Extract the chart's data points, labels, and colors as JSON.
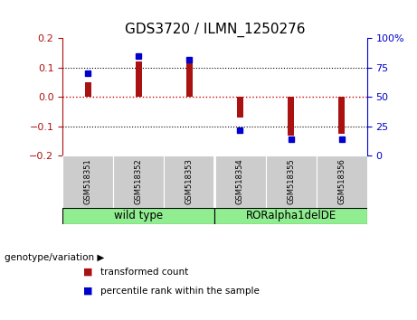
{
  "title": "GDS3720 / ILMN_1250276",
  "samples": [
    "GSM518351",
    "GSM518352",
    "GSM518353",
    "GSM518354",
    "GSM518355",
    "GSM518356"
  ],
  "bar_values": [
    0.05,
    0.12,
    0.12,
    -0.07,
    -0.13,
    -0.125
  ],
  "percentile_values": [
    70,
    85,
    82,
    22,
    14,
    14
  ],
  "ylim_left": [
    -0.2,
    0.2
  ],
  "ylim_right": [
    0,
    100
  ],
  "yticks_left": [
    -0.2,
    -0.1,
    0,
    0.1,
    0.2
  ],
  "yticks_right": [
    0,
    25,
    50,
    75,
    100
  ],
  "bar_color": "#aa1111",
  "dot_color": "#0000cc",
  "groups": [
    {
      "label": "wild type",
      "span": [
        0,
        3
      ],
      "color": "#90ee90"
    },
    {
      "label": "RORalpha1delDE",
      "span": [
        3,
        6
      ],
      "color": "#90ee90"
    }
  ],
  "group_label_prefix": "genotype/variation",
  "legend_bar_label": "transformed count",
  "legend_dot_label": "percentile rank within the sample",
  "title_fontsize": 11,
  "tick_fontsize": 8,
  "hline_zero_color": "#cc0000",
  "hline_dotted_color": "black",
  "sample_box_color": "#cccccc",
  "bar_width": 0.12,
  "bg_color": "white"
}
